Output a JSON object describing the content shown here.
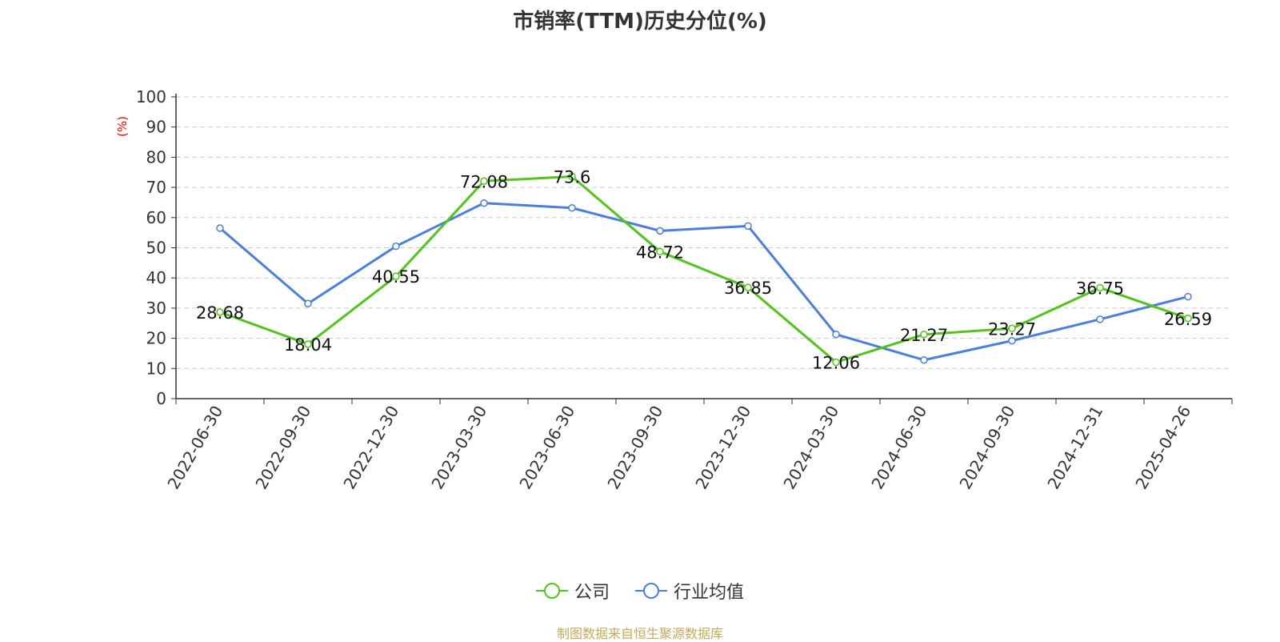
{
  "chart_data": {
    "type": "line",
    "title": "市销率(TTM)历史分位(%)",
    "xlabel": "",
    "ylabel": "(%)",
    "ylim": [
      0,
      100
    ],
    "yticks": [
      0,
      10,
      20,
      30,
      40,
      50,
      60,
      70,
      80,
      90,
      100
    ],
    "grid": true,
    "legend_position": "bottom",
    "categories": [
      "2022-06-30",
      "2022-09-30",
      "2022-12-30",
      "2023-03-30",
      "2023-06-30",
      "2023-09-30",
      "2023-12-30",
      "2024-03-30",
      "2024-06-30",
      "2024-09-30",
      "2024-12-31",
      "2025-04-26"
    ],
    "series": [
      {
        "name": "公司",
        "color": "#52c41a",
        "show_labels": true,
        "values": [
          28.68,
          18.04,
          40.55,
          72.08,
          73.6,
          48.72,
          36.85,
          12.06,
          21.27,
          23.27,
          36.75,
          26.59
        ]
      },
      {
        "name": "行业均值",
        "color": "#4a7fdd",
        "show_labels": false,
        "values": [
          56.5,
          31.5,
          50.5,
          64.8,
          63.2,
          55.6,
          57.2,
          21.3,
          12.8,
          19.2,
          26.3,
          33.8
        ]
      }
    ]
  },
  "source_text": "制图数据来自恒生聚源数据库"
}
